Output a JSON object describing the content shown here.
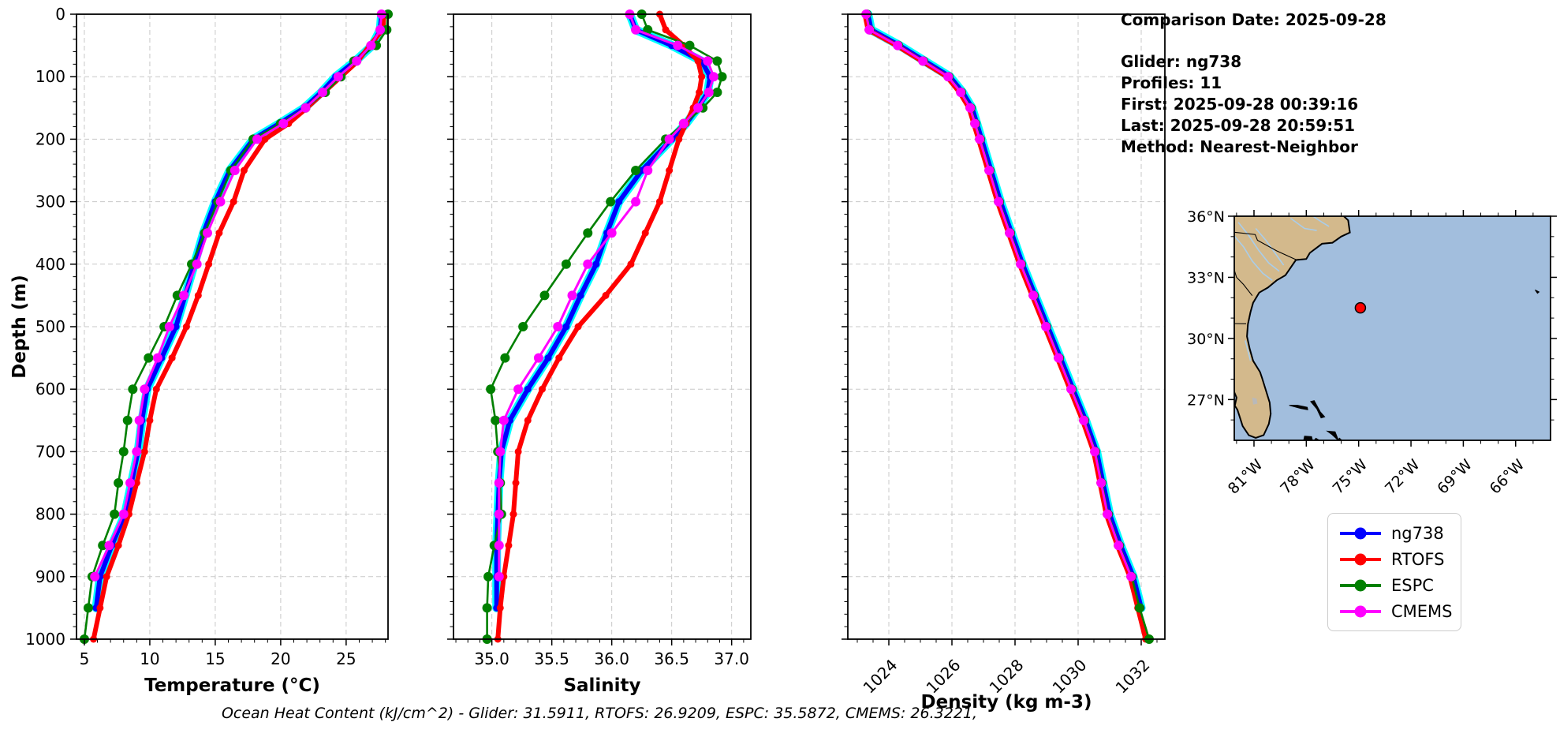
{
  "meta": {
    "comparison_date": "Comparison Date: 2025-09-28",
    "glider": "Glider: ng738",
    "profiles": "Profiles: 11",
    "first": "First: 2025-09-28 00:39:16",
    "last": "Last: 2025-09-28 20:59:51",
    "method": "Method: Nearest-Neighbor"
  },
  "footer": {
    "ohc_text": "Ocean Heat Content (kJ/cm^2) - Glider: 31.5911,  RTOFS: 26.9209,  ESPC: 35.5872,  CMEMS: 26.3221,"
  },
  "legend": {
    "items": [
      {
        "label": "ng738",
        "color": "#0000ff"
      },
      {
        "label": "RTOFS",
        "color": "#ff0000"
      },
      {
        "label": "ESPC",
        "color": "#008000"
      },
      {
        "label": "CMEMS",
        "color": "#ff00ff"
      }
    ]
  },
  "map": {
    "lat_ticks": [
      "36°N",
      "33°N",
      "30°N",
      "27°N"
    ],
    "lon_ticks": [
      "81°W",
      "78°W",
      "75°W",
      "72°W",
      "69°W",
      "66°W"
    ],
    "marker": {
      "lat": 31.5,
      "lon": -74.9,
      "color": "#ff0000"
    },
    "land_color": "#d3b98c",
    "ocean_color": "#a2bedd",
    "river_color": "#a9cdea",
    "lake_color": "#b9b9b9"
  },
  "chart_data": {
    "type": "line",
    "profile_type": "ocean-depth-profiles",
    "depth_label": "Depth (m)",
    "ylim": [
      0,
      1000
    ],
    "depth_ticks": [
      0,
      100,
      200,
      300,
      400,
      500,
      600,
      700,
      800,
      900,
      1000
    ],
    "glider_envelope_color": "#00ffff",
    "depths": [
      0,
      25,
      50,
      75,
      100,
      125,
      150,
      175,
      200,
      250,
      300,
      350,
      400,
      450,
      500,
      550,
      600,
      650,
      700,
      750,
      800,
      850,
      900,
      950,
      1000
    ],
    "panels": [
      {
        "xlabel": "Temperature (°C)",
        "xticks": [
          5,
          10,
          15,
          20,
          25
        ],
        "xtick_labels": [
          "5",
          "10",
          "15",
          "20",
          "25"
        ],
        "xlim": [
          4.4,
          28.2
        ],
        "minor_step": 1,
        "rotate_xticklabels": false,
        "series": [
          {
            "name": "ng738",
            "color": "#0000ff",
            "values": [
              27.7,
              27.6,
              27.0,
              25.7,
              24.2,
              23.1,
              21.8,
              19.9,
              17.9,
              16.1,
              15.0,
              14.1,
              13.4,
              12.7,
              12.0,
              10.9,
              9.8,
              9.4,
              9.1,
              8.6,
              8.1,
              7.1,
              6.2,
              5.9,
              null
            ]
          },
          {
            "name": "RTOFS",
            "color": "#ff0000",
            "values": [
              27.9,
              27.8,
              26.8,
              25.9,
              24.6,
              23.3,
              22.0,
              20.6,
              18.8,
              17.2,
              16.4,
              15.3,
              14.5,
              13.7,
              12.8,
              11.7,
              10.5,
              10.0,
              9.6,
              9.0,
              8.4,
              7.6,
              6.7,
              6.2,
              5.7
            ]
          },
          {
            "name": "ESPC",
            "color": "#008000",
            "values": [
              28.2,
              28.1,
              27.3,
              25.6,
              24.6,
              23.4,
              21.9,
              20.0,
              17.9,
              16.2,
              15.2,
              14.2,
              13.2,
              12.1,
              11.1,
              9.9,
              8.7,
              8.3,
              8.0,
              7.6,
              7.3,
              6.4,
              5.6,
              5.3,
              5.0
            ]
          },
          {
            "name": "CMEMS",
            "color": "#ff00ff",
            "values": [
              27.7,
              27.6,
              26.9,
              25.8,
              24.4,
              23.2,
              21.9,
              20.2,
              18.2,
              16.5,
              15.4,
              14.4,
              13.6,
              12.6,
              11.5,
              10.6,
              9.6,
              9.2,
              9.0,
              8.5,
              8.0,
              6.9,
              5.8,
              null,
              null
            ]
          }
        ]
      },
      {
        "xlabel": "Salinity",
        "xticks": [
          35.0,
          35.5,
          36.0,
          36.5,
          37.0
        ],
        "xtick_labels": [
          "35.0",
          "35.5",
          "36.0",
          "36.5",
          "37.0"
        ],
        "xlim": [
          34.68,
          37.16
        ],
        "minor_step": 0.1,
        "rotate_xticklabels": false,
        "series": [
          {
            "name": "ng738",
            "color": "#0000ff",
            "values": [
              36.15,
              36.2,
              36.5,
              36.75,
              36.82,
              36.8,
              36.72,
              36.62,
              36.5,
              36.25,
              36.06,
              35.96,
              35.87,
              35.74,
              35.62,
              35.47,
              35.3,
              35.15,
              35.08,
              35.06,
              35.05,
              35.04,
              35.04,
              35.04,
              null
            ]
          },
          {
            "name": "RTOFS",
            "color": "#ff0000",
            "values": [
              36.4,
              36.45,
              36.6,
              36.72,
              36.75,
              36.73,
              36.68,
              36.62,
              36.56,
              36.48,
              36.4,
              36.28,
              36.16,
              35.95,
              35.72,
              35.56,
              35.42,
              35.3,
              35.22,
              35.2,
              35.18,
              35.14,
              35.1,
              35.07,
              35.05
            ]
          },
          {
            "name": "ESPC",
            "color": "#008000",
            "values": [
              36.25,
              36.3,
              36.65,
              36.88,
              36.92,
              36.88,
              36.76,
              36.6,
              36.45,
              36.2,
              35.99,
              35.8,
              35.62,
              35.44,
              35.26,
              35.11,
              34.99,
              35.03,
              35.05,
              35.07,
              35.08,
              35.02,
              34.97,
              34.96,
              34.96
            ]
          },
          {
            "name": "CMEMS",
            "color": "#ff00ff",
            "values": [
              36.15,
              36.2,
              36.55,
              36.8,
              36.85,
              36.81,
              36.72,
              36.6,
              36.48,
              36.3,
              36.2,
              36.0,
              35.8,
              35.67,
              35.55,
              35.39,
              35.22,
              35.1,
              35.07,
              35.06,
              35.06,
              35.06,
              35.06,
              null,
              null
            ]
          }
        ]
      },
      {
        "xlabel": "Density (kg m-3)",
        "xticks": [
          1024,
          1026,
          1028,
          1030,
          1032
        ],
        "xtick_labels": [
          "1024",
          "1026",
          "1028",
          "1030",
          "1032"
        ],
        "xlim": [
          1022.7,
          1032.75
        ],
        "minor_step": 0.5,
        "rotate_xticklabels": true,
        "series": [
          {
            "name": "ng738",
            "color": "#0000ff",
            "values": [
              1023.34,
              1023.44,
              1024.34,
              1025.14,
              1025.94,
              1026.34,
              1026.64,
              1026.79,
              1026.94,
              1027.24,
              1027.54,
              1027.89,
              1028.24,
              1028.64,
              1029.04,
              1029.44,
              1029.84,
              1030.24,
              1030.59,
              1030.79,
              1031.0,
              1031.35,
              1031.75,
              1032.0,
              null
            ]
          },
          {
            "name": "RTOFS",
            "color": "#ff0000",
            "values": [
              1023.24,
              1023.34,
              1024.24,
              1025.04,
              1025.84,
              1026.24,
              1026.54,
              1026.69,
              1026.84,
              1027.14,
              1027.44,
              1027.79,
              1028.14,
              1028.54,
              1028.94,
              1029.34,
              1029.74,
              1030.14,
              1030.49,
              1030.69,
              1030.89,
              1031.24,
              1031.64,
              1031.89,
              1032.14
            ]
          },
          {
            "name": "ESPC",
            "color": "#008000",
            "values": [
              1023.3,
              1023.4,
              1024.3,
              1025.1,
              1025.9,
              1026.3,
              1026.6,
              1026.75,
              1026.9,
              1027.2,
              1027.5,
              1027.85,
              1028.2,
              1028.6,
              1029.0,
              1029.4,
              1029.8,
              1030.2,
              1030.55,
              1030.75,
              1030.95,
              1031.3,
              1031.7,
              1031.95,
              1032.25
            ]
          },
          {
            "name": "CMEMS",
            "color": "#ff00ff",
            "values": [
              1023.28,
              1023.38,
              1024.28,
              1025.08,
              1025.88,
              1026.28,
              1026.58,
              1026.73,
              1026.88,
              1027.18,
              1027.48,
              1027.83,
              1028.18,
              1028.58,
              1028.98,
              1029.38,
              1029.78,
              1030.18,
              1030.53,
              1030.73,
              1030.93,
              1031.28,
              1031.68,
              null,
              null
            ]
          }
        ]
      }
    ]
  }
}
